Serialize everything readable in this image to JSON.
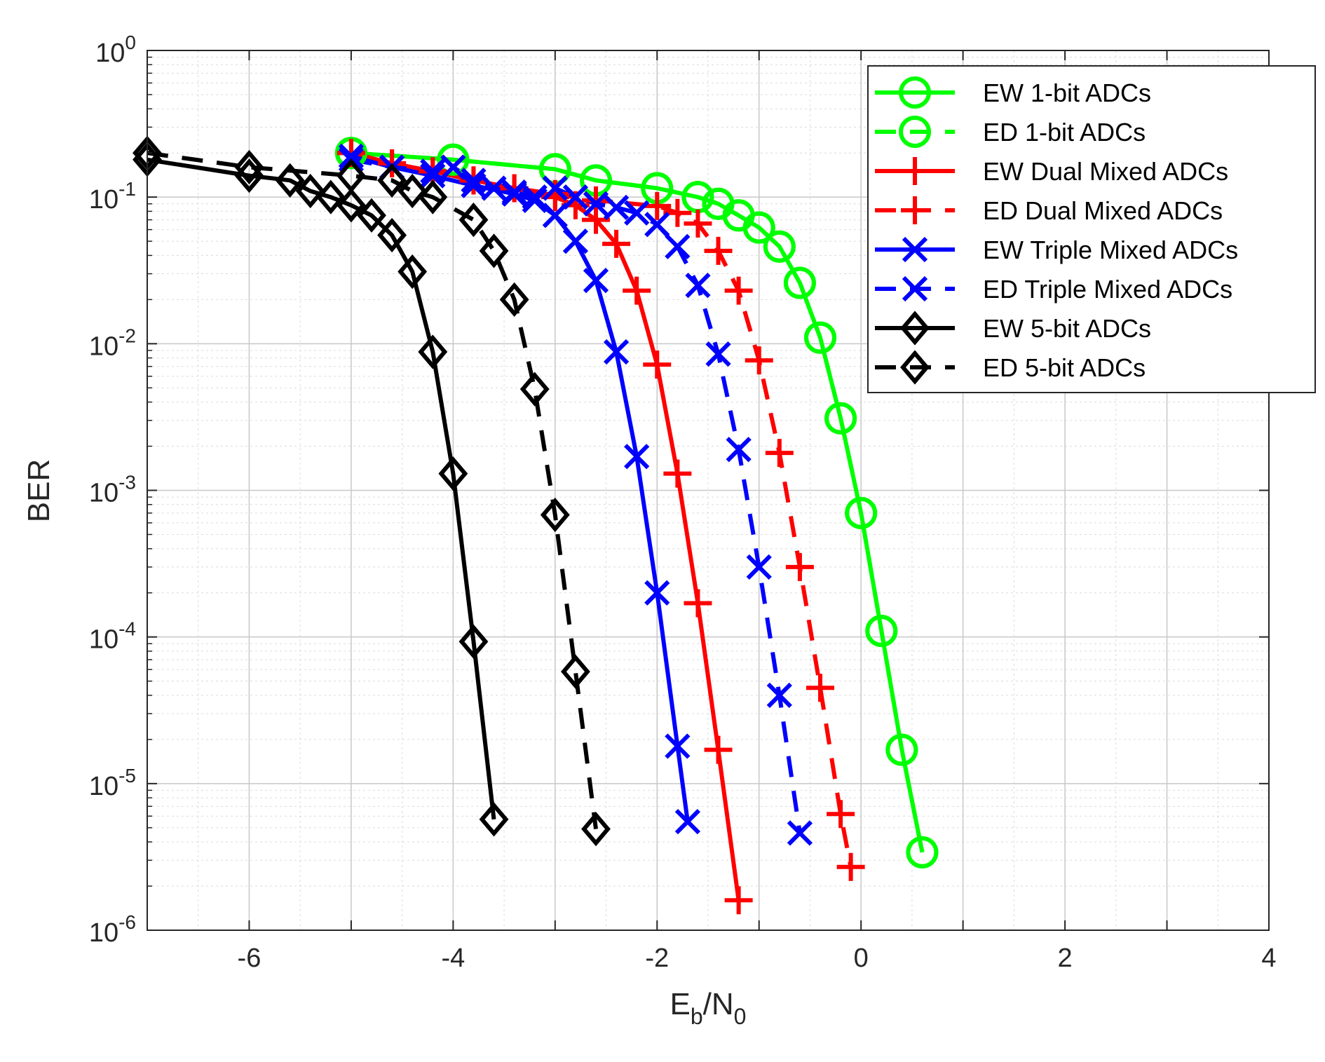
{
  "chart_data": {
    "type": "line",
    "title": "",
    "xlabel": {
      "main": "E",
      "sub1": "b",
      "sep": "/N",
      "sub2": "0"
    },
    "ylabel": "BER",
    "xlim": [
      -7,
      4
    ],
    "ylim_exp": [
      -6,
      0
    ],
    "yscale": "log",
    "grid": true,
    "minor_grid": true,
    "legend_position": "top-right",
    "x_ticks": [
      -6,
      -4,
      -2,
      0,
      2,
      4
    ],
    "x_tick_labels": [
      "-6",
      "-4",
      "-2",
      "0",
      "2",
      "4"
    ],
    "y_ticks_exp": [
      0,
      -1,
      -2,
      -3,
      -4,
      -5,
      -6
    ],
    "y_tick_labels": [
      {
        "base": "10",
        "exp": "0"
      },
      {
        "base": "10",
        "exp": "-1"
      },
      {
        "base": "10",
        "exp": "-2"
      },
      {
        "base": "10",
        "exp": "-3"
      },
      {
        "base": "10",
        "exp": "-4"
      },
      {
        "base": "10",
        "exp": "-5"
      },
      {
        "base": "10",
        "exp": "-6"
      }
    ],
    "series": [
      {
        "name": "EW 1-bit ADCs",
        "color": "#00ff00",
        "dash": "solid",
        "marker": "circle",
        "x": [
          -5,
          -4,
          -3,
          -2.6,
          -2,
          -1.6,
          -1.4,
          -1.2,
          -1.0,
          -0.8,
          -0.6,
          -0.4,
          -0.2,
          0,
          0.2,
          0.4,
          0.6
        ],
        "y": [
          0.2,
          0.18,
          0.155,
          0.13,
          0.115,
          0.1,
          0.09,
          0.075,
          0.062,
          0.046,
          0.026,
          0.011,
          0.0031,
          0.0007,
          0.00011,
          1.7e-05,
          3.4e-06
        ]
      },
      {
        "name": "ED 1-bit ADCs",
        "color": "#00ff00",
        "dash": "dashed",
        "marker": "circle",
        "x": [
          -5,
          -4,
          -3,
          -2.6,
          -2,
          -1.6,
          -1.4,
          -1.2,
          -1.0,
          -0.8,
          -0.6,
          -0.4,
          -0.2,
          0,
          0.2,
          0.4,
          0.6
        ],
        "y": [
          0.2,
          0.18,
          0.155,
          0.13,
          0.115,
          0.1,
          0.09,
          0.075,
          0.062,
          0.046,
          0.026,
          0.011,
          0.0031,
          0.0007,
          0.00011,
          1.7e-05,
          3.4e-06
        ]
      },
      {
        "name": "EW Dual Mixed ADCs",
        "color": "#ff0000",
        "dash": "solid",
        "marker": "plus",
        "x": [
          -5,
          -4.6,
          -4.2,
          -3.8,
          -3.4,
          -3.0,
          -2.8,
          -2.6,
          -2.4,
          -2.2,
          -2.0,
          -1.8,
          -1.6,
          -1.4,
          -1.2
        ],
        "y": [
          0.2,
          0.17,
          0.15,
          0.13,
          0.115,
          0.1,
          0.088,
          0.07,
          0.048,
          0.023,
          0.0072,
          0.0013,
          0.00017,
          1.7e-05,
          1.6e-06
        ]
      },
      {
        "name": "ED Dual Mixed ADCs",
        "color": "#ff0000",
        "dash": "dashed",
        "marker": "plus",
        "x": [
          -5,
          -4.6,
          -4.2,
          -3.8,
          -3.4,
          -3.0,
          -2.6,
          -2.0,
          -1.8,
          -1.6,
          -1.4,
          -1.2,
          -1.0,
          -0.8,
          -0.6,
          -0.4,
          -0.2,
          -0.1
        ],
        "y": [
          0.2,
          0.17,
          0.15,
          0.13,
          0.115,
          0.105,
          0.095,
          0.087,
          0.078,
          0.066,
          0.043,
          0.023,
          0.0077,
          0.0018,
          0.0003,
          4.5e-05,
          6.2e-06,
          2.7e-06
        ]
      },
      {
        "name": "EW Triple Mixed ADCs",
        "color": "#0000ff",
        "dash": "solid",
        "marker": "x",
        "x": [
          -5,
          -4.6,
          -4.2,
          -3.8,
          -3.4,
          -3.2,
          -3.0,
          -2.8,
          -2.6,
          -2.4,
          -2.2,
          -2.0,
          -1.8,
          -1.7
        ],
        "y": [
          0.19,
          0.16,
          0.14,
          0.12,
          0.105,
          0.095,
          0.075,
          0.05,
          0.027,
          0.0088,
          0.0017,
          0.0002,
          1.8e-05,
          5.5e-06
        ]
      },
      {
        "name": "ED Triple Mixed ADCs",
        "color": "#0000ff",
        "dash": "dashed",
        "marker": "x",
        "x": [
          -5,
          -4.6,
          -4.2,
          -4.0,
          -3.8,
          -3.6,
          -3.4,
          -3.2,
          -3.0,
          -2.8,
          -2.6,
          -2.4,
          -2.2,
          -2.0,
          -1.8,
          -1.6,
          -1.4,
          -1.2,
          -1.0,
          -0.8,
          -0.6
        ],
        "y": [
          0.18,
          0.16,
          0.15,
          0.16,
          0.13,
          0.115,
          0.108,
          0.1,
          0.115,
          0.1,
          0.09,
          0.085,
          0.078,
          0.065,
          0.046,
          0.025,
          0.0085,
          0.0019,
          0.0003,
          4e-05,
          4.6e-06
        ]
      },
      {
        "name": "EW 5-bit ADCs",
        "color": "#000000",
        "dash": "solid",
        "marker": "diamond",
        "x": [
          -7,
          -6,
          -5.6,
          -5.4,
          -5.2,
          -5.0,
          -4.8,
          -4.6,
          -4.4,
          -4.2,
          -4.0,
          -3.8,
          -3.6
        ],
        "y": [
          0.18,
          0.14,
          0.13,
          0.11,
          0.1,
          0.088,
          0.075,
          0.055,
          0.031,
          0.0088,
          0.0013,
          9.3e-05,
          5.7e-06
        ]
      },
      {
        "name": "ED 5-bit ADCs",
        "color": "#000000",
        "dash": "dashed",
        "marker": "diamond",
        "x": [
          -7,
          -6,
          -5.0,
          -4.6,
          -4.4,
          -4.2,
          -3.8,
          -3.6,
          -3.4,
          -3.2,
          -3.0,
          -2.8,
          -2.6
        ],
        "y": [
          0.2,
          0.16,
          0.14,
          0.13,
          0.11,
          0.1,
          0.07,
          0.043,
          0.02,
          0.0049,
          0.00068,
          5.8e-05,
          4.9e-06
        ]
      }
    ]
  }
}
